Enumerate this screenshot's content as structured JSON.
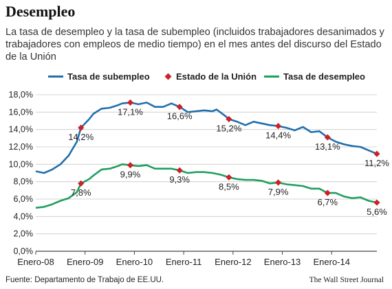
{
  "header": {
    "title": "Desempleo",
    "subtitle": "La tasa de desempleo y la tasa de subempleo (incluidos trabajadores desanimados y trabajadores con empleos de medio tiempo) en el mes antes del discurso del Estado de la Unión"
  },
  "legend": {
    "items": [
      {
        "label": "Tasa de subempleo",
        "color": "#1f6fad",
        "kind": "line"
      },
      {
        "label": "Estado de la Unión",
        "color": "#cc2128",
        "kind": "diamond"
      },
      {
        "label": "Tasa de desempleo",
        "color": "#1f9e5e",
        "kind": "line"
      }
    ]
  },
  "footer": {
    "source": "Fuente: Departamento de Trabajo de EE.UU.",
    "publisher": "The Wall Street Journal"
  },
  "chart_data": {
    "type": "line",
    "title": "Desempleo",
    "xlabel": "",
    "ylabel": "",
    "ylim": [
      0,
      18
    ],
    "yticks": [
      0,
      2,
      4,
      6,
      8,
      10,
      12,
      14,
      16,
      18
    ],
    "ytick_labels": [
      "0,0%",
      "2,0%",
      "4,0%",
      "6,0%",
      "8,0%",
      "10,0%",
      "12,0%",
      "14,0%",
      "16,0%",
      "18,0%"
    ],
    "x_start": "2008-01",
    "x_end": "2014-12",
    "xticks": [
      "2008-01",
      "2009-01",
      "2010-01",
      "2011-01",
      "2012-01",
      "2013-01",
      "2014-01"
    ],
    "xtick_labels": [
      "Enero-08",
      "Enero-09",
      "Enero-10",
      "Enero-11",
      "Enero-12",
      "Enero-13",
      "Enero-14"
    ],
    "grid": true,
    "series": [
      {
        "name": "Tasa de subempleo",
        "color": "#1f6fad",
        "points": [
          [
            "2008-01",
            9.2
          ],
          [
            "2008-03",
            9.0
          ],
          [
            "2008-05",
            9.4
          ],
          [
            "2008-07",
            10.0
          ],
          [
            "2008-09",
            11.0
          ],
          [
            "2008-11",
            12.6
          ],
          [
            "2008-12",
            14.2
          ],
          [
            "2009-02",
            15.2
          ],
          [
            "2009-03",
            15.8
          ],
          [
            "2009-05",
            16.4
          ],
          [
            "2009-07",
            16.5
          ],
          [
            "2009-09",
            16.8
          ],
          [
            "2009-10",
            17.0
          ],
          [
            "2009-12",
            17.1
          ],
          [
            "2010-02",
            16.9
          ],
          [
            "2010-04",
            17.1
          ],
          [
            "2010-06",
            16.6
          ],
          [
            "2010-08",
            16.6
          ],
          [
            "2010-10",
            17.0
          ],
          [
            "2010-12",
            16.6
          ],
          [
            "2011-02",
            16.0
          ],
          [
            "2011-04",
            16.1
          ],
          [
            "2011-06",
            16.2
          ],
          [
            "2011-08",
            16.1
          ],
          [
            "2011-09",
            16.3
          ],
          [
            "2011-11",
            15.6
          ],
          [
            "2011-12",
            15.2
          ],
          [
            "2012-02",
            14.9
          ],
          [
            "2012-04",
            14.5
          ],
          [
            "2012-06",
            14.9
          ],
          [
            "2012-08",
            14.7
          ],
          [
            "2012-10",
            14.5
          ],
          [
            "2012-12",
            14.4
          ],
          [
            "2013-02",
            14.2
          ],
          [
            "2013-04",
            13.9
          ],
          [
            "2013-06",
            14.3
          ],
          [
            "2013-08",
            13.7
          ],
          [
            "2013-10",
            13.8
          ],
          [
            "2013-12",
            13.1
          ],
          [
            "2014-02",
            12.6
          ],
          [
            "2014-04",
            12.3
          ],
          [
            "2014-06",
            12.1
          ],
          [
            "2014-08",
            12.0
          ],
          [
            "2014-10",
            11.6
          ],
          [
            "2014-12",
            11.2
          ]
        ]
      },
      {
        "name": "Tasa de desempleo",
        "color": "#1f9e5e",
        "points": [
          [
            "2008-01",
            5.0
          ],
          [
            "2008-03",
            5.1
          ],
          [
            "2008-05",
            5.4
          ],
          [
            "2008-07",
            5.8
          ],
          [
            "2008-09",
            6.1
          ],
          [
            "2008-11",
            6.8
          ],
          [
            "2008-12",
            7.8
          ],
          [
            "2009-02",
            8.3
          ],
          [
            "2009-03",
            8.7
          ],
          [
            "2009-05",
            9.4
          ],
          [
            "2009-07",
            9.5
          ],
          [
            "2009-09",
            9.8
          ],
          [
            "2009-10",
            10.0
          ],
          [
            "2009-12",
            9.9
          ],
          [
            "2010-02",
            9.8
          ],
          [
            "2010-04",
            9.9
          ],
          [
            "2010-06",
            9.5
          ],
          [
            "2010-08",
            9.5
          ],
          [
            "2010-10",
            9.5
          ],
          [
            "2010-12",
            9.3
          ],
          [
            "2011-02",
            9.0
          ],
          [
            "2011-04",
            9.1
          ],
          [
            "2011-06",
            9.1
          ],
          [
            "2011-08",
            9.0
          ],
          [
            "2011-10",
            8.8
          ],
          [
            "2011-12",
            8.5
          ],
          [
            "2012-02",
            8.3
          ],
          [
            "2012-04",
            8.2
          ],
          [
            "2012-06",
            8.2
          ],
          [
            "2012-08",
            8.1
          ],
          [
            "2012-10",
            7.8
          ],
          [
            "2012-12",
            7.9
          ],
          [
            "2013-02",
            7.7
          ],
          [
            "2013-04",
            7.6
          ],
          [
            "2013-06",
            7.5
          ],
          [
            "2013-08",
            7.2
          ],
          [
            "2013-10",
            7.2
          ],
          [
            "2013-12",
            6.7
          ],
          [
            "2014-02",
            6.7
          ],
          [
            "2014-04",
            6.3
          ],
          [
            "2014-06",
            6.1
          ],
          [
            "2014-08",
            6.2
          ],
          [
            "2014-10",
            5.8
          ],
          [
            "2014-12",
            5.6
          ]
        ]
      }
    ],
    "markers": {
      "name": "Estado de la Unión",
      "color": "#cc2128",
      "points": [
        {
          "series": "Tasa de subempleo",
          "x": "2008-12",
          "y": 14.2,
          "label": "14,2%"
        },
        {
          "series": "Tasa de subempleo",
          "x": "2009-12",
          "y": 17.1,
          "label": "17,1%"
        },
        {
          "series": "Tasa de subempleo",
          "x": "2010-12",
          "y": 16.6,
          "label": "16,6%"
        },
        {
          "series": "Tasa de subempleo",
          "x": "2011-12",
          "y": 15.2,
          "label": "15,2%"
        },
        {
          "series": "Tasa de subempleo",
          "x": "2012-12",
          "y": 14.4,
          "label": "14,4%"
        },
        {
          "series": "Tasa de subempleo",
          "x": "2013-12",
          "y": 13.1,
          "label": "13,1%"
        },
        {
          "series": "Tasa de subempleo",
          "x": "2014-12",
          "y": 11.2,
          "label": "11,2%"
        },
        {
          "series": "Tasa de desempleo",
          "x": "2008-12",
          "y": 7.8,
          "label": "7,8%"
        },
        {
          "series": "Tasa de desempleo",
          "x": "2009-12",
          "y": 9.9,
          "label": "9,9%"
        },
        {
          "series": "Tasa de desempleo",
          "x": "2010-12",
          "y": 9.3,
          "label": "9,3%"
        },
        {
          "series": "Tasa de desempleo",
          "x": "2011-12",
          "y": 8.5,
          "label": "8,5%"
        },
        {
          "series": "Tasa de desempleo",
          "x": "2012-12",
          "y": 7.9,
          "label": "7,9%"
        },
        {
          "series": "Tasa de desempleo",
          "x": "2013-12",
          "y": 6.7,
          "label": "6,7%"
        },
        {
          "series": "Tasa de desempleo",
          "x": "2014-12",
          "y": 5.6,
          "label": "5,6%"
        }
      ]
    }
  }
}
